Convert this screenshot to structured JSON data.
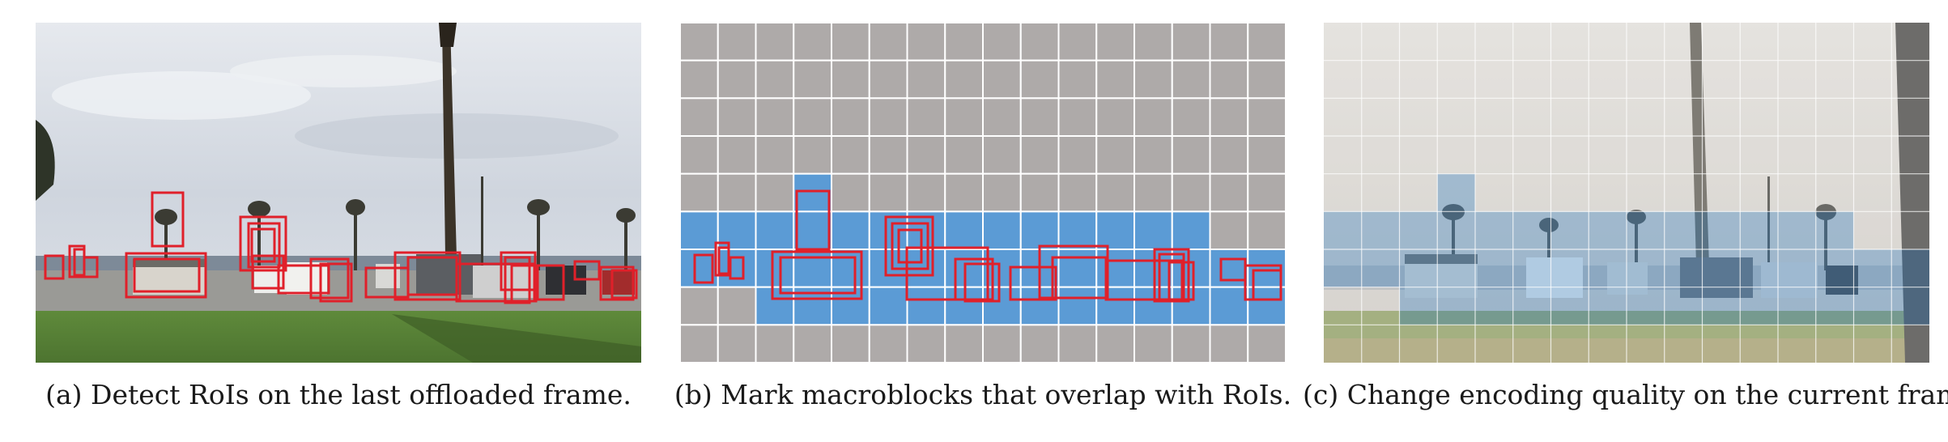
{
  "figure": {
    "panels": [
      {
        "id": "a",
        "caption": "(a) Detect RoIs on the last offloaded frame.",
        "content": "scene-with-roi-boxes"
      },
      {
        "id": "b",
        "caption": "(b) Mark macroblocks that overlap with RoIs.",
        "content": "macroblock-grid"
      },
      {
        "id": "c",
        "caption": "(c) Change encoding quality on the current frame.",
        "content": "scene-with-quality-overlay"
      }
    ],
    "grid": {
      "columns": 16,
      "rows": 9
    },
    "marked_macroblocks": [
      [
        0,
        0,
        0,
        0,
        0,
        0,
        0,
        0,
        0,
        0,
        0,
        0,
        0,
        0,
        0,
        0
      ],
      [
        0,
        0,
        0,
        0,
        0,
        0,
        0,
        0,
        0,
        0,
        0,
        0,
        0,
        0,
        0,
        0
      ],
      [
        0,
        0,
        0,
        0,
        0,
        0,
        0,
        0,
        0,
        0,
        0,
        0,
        0,
        0,
        0,
        0
      ],
      [
        0,
        0,
        0,
        0,
        0,
        0,
        0,
        0,
        0,
        0,
        0,
        0,
        0,
        0,
        0,
        0
      ],
      [
        0,
        0,
        0,
        1,
        0,
        0,
        0,
        0,
        0,
        0,
        0,
        0,
        0,
        0,
        0,
        0
      ],
      [
        1,
        1,
        1,
        1,
        1,
        1,
        1,
        1,
        1,
        1,
        1,
        1,
        1,
        1,
        0,
        0
      ],
      [
        1,
        1,
        1,
        1,
        1,
        1,
        1,
        1,
        1,
        1,
        1,
        1,
        1,
        1,
        1,
        1
      ],
      [
        0,
        0,
        1,
        1,
        1,
        1,
        1,
        1,
        1,
        1,
        1,
        1,
        1,
        1,
        1,
        1
      ],
      [
        0,
        0,
        0,
        0,
        0,
        0,
        0,
        0,
        0,
        0,
        0,
        0,
        0,
        0,
        0,
        0
      ]
    ],
    "colors": {
      "roi_box": "#e0202a",
      "macroblock_marked": "#5b9bd5",
      "macroblock_unmarked": "#aeaaa9",
      "grid_line": "#ffffff"
    }
  }
}
